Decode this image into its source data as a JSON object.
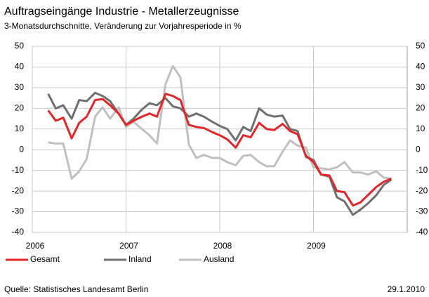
{
  "chart_data": {
    "type": "line",
    "title": "Auftragseingänge Industrie - Metallerzeugnisse",
    "subtitle": "3-Monatsdurchschnitte, Veränderung zur Vorjahresperiode in %",
    "source": "Quelle: Statistisches Landesamt Berlin",
    "date": "29.1.2010",
    "x": [
      2006.17,
      2006.25,
      2006.33,
      2006.42,
      2006.5,
      2006.58,
      2006.67,
      2006.75,
      2006.83,
      2006.92,
      2007.0,
      2007.08,
      2007.17,
      2007.25,
      2007.33,
      2007.42,
      2007.5,
      2007.58,
      2007.67,
      2007.75,
      2007.83,
      2007.92,
      2008.0,
      2008.08,
      2008.17,
      2008.25,
      2008.33,
      2008.42,
      2008.5,
      2008.58,
      2008.67,
      2008.75,
      2008.83,
      2008.92,
      2009.0,
      2009.08,
      2009.17,
      2009.25,
      2009.33,
      2009.42,
      2009.5,
      2009.58,
      2009.67,
      2009.75,
      2009.83
    ],
    "series": [
      {
        "name": "Gesamt",
        "color": "#e3262a",
        "values": [
          19,
          14,
          15.5,
          5.5,
          13,
          16,
          24,
          24.5,
          21.5,
          17.5,
          12,
          14,
          16,
          17.5,
          16,
          27,
          26,
          24,
          12,
          11,
          10.5,
          8.5,
          7,
          5,
          1,
          7,
          6,
          13,
          10,
          9.5,
          12.5,
          9,
          7.5,
          -3,
          -6,
          -12,
          -12.5,
          -20,
          -20.5,
          -27,
          -25.5,
          -22,
          -18,
          -15.5,
          -14
        ]
      },
      {
        "name": "Inland",
        "color": "#707070",
        "values": [
          27,
          20,
          21.5,
          15,
          24,
          23.5,
          27.5,
          26,
          23.5,
          17.5,
          12,
          15,
          19.5,
          22.5,
          21.5,
          25,
          21,
          20,
          16,
          17.5,
          16,
          13.5,
          11.5,
          10,
          4.5,
          11,
          9,
          20,
          17,
          16,
          16.5,
          10,
          9,
          -3.5,
          -5,
          -12,
          -13,
          -23,
          -25,
          -31.5,
          -29,
          -26,
          -22,
          -17,
          -14.5
        ]
      },
      {
        "name": "Ausland",
        "color": "#c0c0c0",
        "values": [
          3.5,
          3,
          3,
          -14,
          -10.5,
          -4.5,
          16,
          20.5,
          15,
          20.5,
          11,
          13.5,
          10,
          7,
          3,
          31.5,
          40.5,
          35,
          2.5,
          -4,
          -2.5,
          -4,
          -4,
          -6,
          -7.5,
          -3,
          -2.5,
          -6,
          -8,
          -8,
          -1,
          4.5,
          2,
          1,
          -8.5,
          -9,
          -9.5,
          -8.5,
          -6,
          -11,
          -11,
          -12,
          -10.5,
          -13.5,
          -14
        ]
      }
    ],
    "xlim": [
      2006,
      2010
    ],
    "xticks": [
      2006,
      2007,
      2008,
      2009
    ],
    "ylim": [
      -40,
      50
    ],
    "yticks": [
      -40,
      -30,
      -20,
      -10,
      0,
      10,
      20,
      30,
      40,
      50
    ],
    "grid": true
  }
}
